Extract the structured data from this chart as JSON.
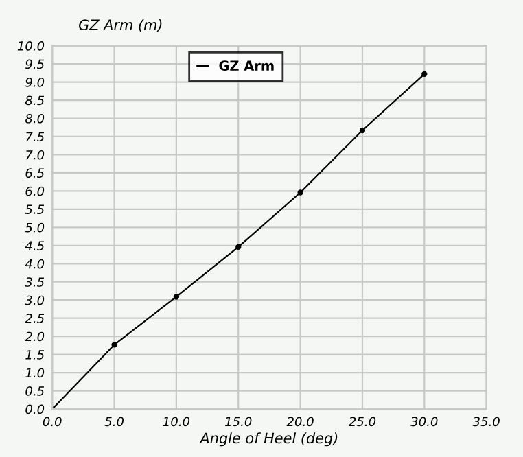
{
  "chart_data": {
    "type": "line",
    "xlabel": "Angle of Heel (deg)",
    "ylabel": "GZ Arm (m)",
    "x": [
      0,
      5,
      10,
      15,
      20,
      25,
      30
    ],
    "series": [
      {
        "name": "GZ Arm",
        "color": "#000000",
        "values": [
          0,
          1.77,
          3.09,
          4.46,
          5.96,
          7.67,
          9.22
        ]
      }
    ],
    "xlim": [
      0,
      35
    ],
    "xticks": [
      {
        "value": 0,
        "label": "0.0"
      },
      {
        "value": 5,
        "label": "5.0"
      },
      {
        "value": 10,
        "label": "10.0"
      },
      {
        "value": 15,
        "label": "15.0"
      },
      {
        "value": 20,
        "label": "20.0"
      },
      {
        "value": 25,
        "label": "25.0"
      },
      {
        "value": 30,
        "label": "30.0"
      },
      {
        "value": 35,
        "label": "35.0"
      }
    ],
    "ylim": [
      0,
      10
    ],
    "yticks": [
      {
        "value": 0,
        "label": "0.0"
      },
      {
        "value": 0.5,
        "label": "0.5"
      },
      {
        "value": 1,
        "label": "1.0"
      },
      {
        "value": 1.5,
        "label": "1.5"
      },
      {
        "value": 2,
        "label": "2.0"
      },
      {
        "value": 2.5,
        "label": "2.5"
      },
      {
        "value": 3,
        "label": "3.0"
      },
      {
        "value": 3.5,
        "label": "3.5"
      },
      {
        "value": 4,
        "label": "4.0"
      },
      {
        "value": 4.5,
        "label": "4.5"
      },
      {
        "value": 5,
        "label": "5.0"
      },
      {
        "value": 5.5,
        "label": "5.5"
      },
      {
        "value": 6,
        "label": "6.0"
      },
      {
        "value": 6.5,
        "label": "6.5"
      },
      {
        "value": 7,
        "label": "7.0"
      },
      {
        "value": 7.5,
        "label": "7.5"
      },
      {
        "value": 8,
        "label": "8.0"
      },
      {
        "value": 8.5,
        "label": "8.5"
      },
      {
        "value": 9,
        "label": "9.0"
      },
      {
        "value": 9.5,
        "label": "9.5"
      },
      {
        "value": 10,
        "label": "10.0"
      }
    ],
    "grid": true,
    "legend": "top",
    "marker": "circle",
    "line_style": "solid"
  }
}
